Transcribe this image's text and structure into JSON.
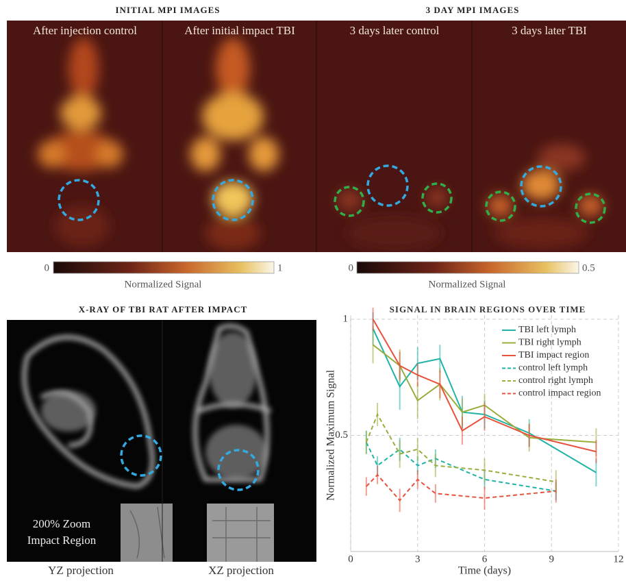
{
  "headers": {
    "initial": "INITIAL MPI IMAGES",
    "day3": "3 DAY MPI IMAGES",
    "xray": "X-RAY OF TBI RAT AFTER IMPACT"
  },
  "panels": [
    "After injection control",
    "After initial impact TBI",
    "3 days later control",
    "3 days later TBI"
  ],
  "colorbars": [
    {
      "min": 0,
      "max": 1,
      "label": "Normalized Signal"
    },
    {
      "min": 0,
      "max": 0.5,
      "label": "Normalized Signal"
    }
  ],
  "xray": {
    "zoom": [
      "200% Zoom",
      "Impact Region"
    ],
    "projections": [
      "YZ projection",
      "XZ projection"
    ]
  },
  "chart_data": {
    "type": "line",
    "title": "SIGNAL IN BRAIN REGIONS OVER TIME",
    "xlabel": "Time (days)",
    "ylabel": "Normalized Maximum Signal",
    "xlim": [
      0,
      12
    ],
    "ylim": [
      0,
      1
    ],
    "xticks": [
      0,
      3,
      6,
      9,
      12
    ],
    "yticks": [
      0.5,
      1
    ],
    "grid": true,
    "legend": "upper-right",
    "series": [
      {
        "name": "TBI left lymph",
        "color": "#1fb3a6",
        "dashed": false,
        "x": [
          1,
          2.2,
          3,
          4,
          5,
          6,
          8,
          11
        ],
        "values": [
          0.96,
          0.71,
          0.81,
          0.83,
          0.6,
          0.59,
          0.51,
          0.34
        ],
        "errors": [
          0.07,
          0.1,
          0.07,
          0.06,
          0.07,
          0.06,
          0.06,
          0.06
        ]
      },
      {
        "name": "TBI right lymph",
        "color": "#98ad3c",
        "dashed": false,
        "x": [
          1,
          2.2,
          3,
          4,
          5,
          6,
          8,
          11
        ],
        "values": [
          0.89,
          0.8,
          0.65,
          0.72,
          0.6,
          0.63,
          0.49,
          0.47
        ],
        "errors": [
          0.08,
          0.07,
          0.08,
          0.07,
          0.06,
          0.05,
          0.06,
          0.06
        ]
      },
      {
        "name": "TBI impact region",
        "color": "#e8513c",
        "dashed": false,
        "x": [
          1,
          2.2,
          3,
          4,
          5,
          6,
          8,
          11
        ],
        "values": [
          1,
          0.8,
          0.76,
          0.72,
          0.52,
          0.58,
          0.5,
          0.43
        ],
        "errors": [
          0.05,
          0.06,
          0.05,
          0.06,
          0.06,
          0.06,
          0.05,
          0.05
        ]
      },
      {
        "name": "control left lymph",
        "color": "#1fb3a6",
        "dashed": true,
        "x": [
          0.7,
          1.2,
          2.2,
          3,
          3.8,
          6,
          9.2
        ],
        "values": [
          0.47,
          0.37,
          0.44,
          0.37,
          0.4,
          0.31,
          0.26
        ],
        "errors": [
          0.05,
          0.04,
          0.05,
          0.04,
          0.04,
          0.04,
          0.04
        ]
      },
      {
        "name": "control right lymph",
        "color": "#98ad3c",
        "dashed": true,
        "x": [
          0.7,
          1.2,
          2.2,
          3,
          3.8,
          6,
          9.2
        ],
        "values": [
          0.47,
          0.59,
          0.42,
          0.44,
          0.37,
          0.35,
          0.3
        ],
        "errors": [
          0.05,
          0.05,
          0.06,
          0.05,
          0.05,
          0.05,
          0.05
        ]
      },
      {
        "name": "control impact region",
        "color": "#e8513c",
        "dashed": true,
        "x": [
          0.7,
          1.2,
          2.2,
          3,
          3.8,
          6,
          9.2
        ],
        "values": [
          0.28,
          0.33,
          0.22,
          0.31,
          0.25,
          0.23,
          0.26
        ],
        "errors": [
          0.04,
          0.04,
          0.05,
          0.04,
          0.04,
          0.05,
          0.05
        ]
      }
    ]
  }
}
